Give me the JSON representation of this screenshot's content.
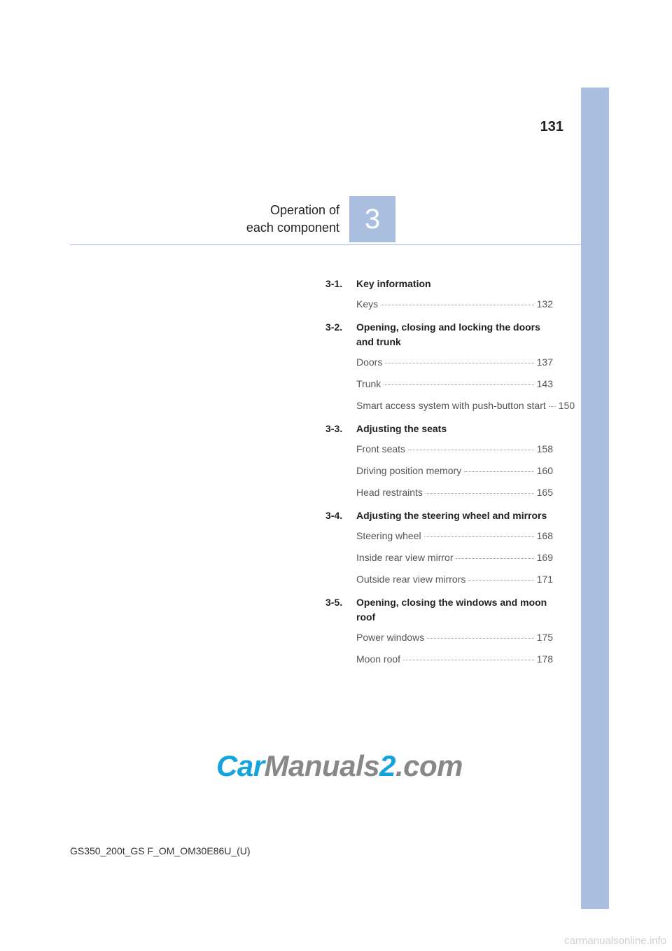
{
  "page_number": "131",
  "chapter": {
    "number": "3",
    "title_line1": "Operation of",
    "title_line2": "each component"
  },
  "sections": [
    {
      "num": "3-1.",
      "title": "Key information",
      "items": [
        {
          "label": "Keys",
          "page": "132"
        }
      ]
    },
    {
      "num": "3-2.",
      "title": "Opening, closing and locking the doors and trunk",
      "items": [
        {
          "label": "Doors",
          "page": "137"
        },
        {
          "label": "Trunk",
          "page": "143"
        },
        {
          "label": "Smart access system with push-button start",
          "page": "150"
        }
      ]
    },
    {
      "num": "3-3.",
      "title": "Adjusting the seats",
      "items": [
        {
          "label": "Front seats",
          "page": "158"
        },
        {
          "label": "Driving position memory",
          "page": "160"
        },
        {
          "label": "Head restraints",
          "page": "165"
        }
      ]
    },
    {
      "num": "3-4.",
      "title": "Adjusting the steering wheel and mirrors",
      "items": [
        {
          "label": "Steering wheel",
          "page": "168"
        },
        {
          "label": "Inside rear view mirror",
          "page": "169"
        },
        {
          "label": "Outside rear view mirrors",
          "page": "171"
        }
      ]
    },
    {
      "num": "3-5.",
      "title": "Opening, closing the windows and moon roof",
      "items": [
        {
          "label": "Power windows",
          "page": "175"
        },
        {
          "label": "Moon roof",
          "page": "178"
        }
      ]
    }
  ],
  "watermark": {
    "car": "Car",
    "manuals": "Manuals",
    "two": "2",
    "com": ".com"
  },
  "footer_code": "GS350_200t_GS F_OM_OM30E86U_(U)",
  "watermark_small": "carmanualsonline.info",
  "colors": {
    "accent": "#aabfe0",
    "watermark_blue": "#14a4dd",
    "watermark_gray": "#888888"
  }
}
